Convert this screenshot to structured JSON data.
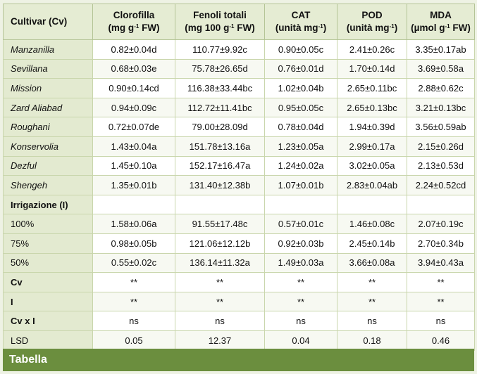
{
  "table": {
    "headers": {
      "cultivar": "Cultivar (Cv)",
      "clorofilla": {
        "line1": "Clorofilla",
        "line2a": "(mg g",
        "sup": "-1",
        "line2b": " FW)"
      },
      "fenoli": {
        "line1": "Fenoli totali",
        "line2a": "(mg 100 g",
        "sup": "-1",
        "line2b": " FW)"
      },
      "cat": {
        "line1": "CAT",
        "line2a": "(unità mg",
        "sup": "-1",
        "line2b": ")"
      },
      "pod": {
        "line1": "POD",
        "line2a": "(unità mg",
        "sup": "-1",
        "line2b": ")"
      },
      "mda": {
        "line1": "MDA",
        "line2a": "(µmol g",
        "sup": "-1",
        "line2b": " FW)"
      }
    },
    "rows": [
      {
        "label": "Manzanilla",
        "values": [
          "0.82±0.04d",
          "110.77±9.92c",
          "0.90±0.05c",
          "2.41±0.26c",
          "3.35±0.17ab"
        ]
      },
      {
        "label": "Sevillana",
        "values": [
          "0.68±0.03e",
          "75.78±26.65d",
          "0.76±0.01d",
          "1.70±0.14d",
          "3.69±0.58a"
        ]
      },
      {
        "label": "Mission",
        "values": [
          "0.90±0.14cd",
          "116.38±33.44bc",
          "1.02±0.04b",
          "2.65±0.11bc",
          "2.88±0.62c"
        ]
      },
      {
        "label": "Zard Aliabad",
        "values": [
          "0.94±0.09c",
          "112.72±11.41bc",
          "0.95±0.05c",
          "2.65±0.13bc",
          "3.21±0.13bc"
        ]
      },
      {
        "label": "Roughani",
        "values": [
          "0.72±0.07de",
          "79.00±28.09d",
          "0.78±0.04d",
          "1.94±0.39d",
          "3.56±0.59ab"
        ]
      },
      {
        "label": "Konservolia",
        "values": [
          "1.43±0.04a",
          "151.78±13.16a",
          "1.23±0.05a",
          "2.99±0.17a",
          "2.15±0.26d"
        ]
      },
      {
        "label": "Dezful",
        "values": [
          "1.45±0.10a",
          "152.17±16.47a",
          "1.24±0.02a",
          "3.02±0.05a",
          "2.13±0.53d"
        ]
      },
      {
        "label": "Shengeh",
        "values": [
          "1.35±0.01b",
          "131.40±12.38b",
          "1.07±0.01b",
          "2.83±0.04ab",
          "2.24±0.52cd"
        ]
      },
      {
        "label": "Irrigazione (I)",
        "values": [
          "",
          "",
          "",
          "",
          ""
        ]
      },
      {
        "label": "100%",
        "values": [
          "1.58±0.06a",
          "91.55±17.48c",
          "0.57±0.01c",
          "1.46±0.08c",
          "2.07±0.19c"
        ]
      },
      {
        "label": "75%",
        "values": [
          "0.98±0.05b",
          "121.06±12.12b",
          "0.92±0.03b",
          "2.45±0.14b",
          "2.70±0.34b"
        ]
      },
      {
        "label": "50%",
        "values": [
          "0.55±0.02c",
          "136.14±11.32a",
          "1.49±0.03a",
          "3.66±0.08a",
          "3.94±0.43a"
        ]
      },
      {
        "label": "Cv",
        "values": [
          "**",
          "**",
          "**",
          "**",
          "**"
        ]
      },
      {
        "label": "I",
        "values": [
          "**",
          "**",
          "**",
          "**",
          "**"
        ]
      },
      {
        "label": "Cv x I",
        "values": [
          "ns",
          "ns",
          "ns",
          "ns",
          "ns"
        ]
      },
      {
        "label": "LSD",
        "values": [
          "0.05",
          "12.37",
          "0.04",
          "0.18",
          "0.46"
        ]
      }
    ]
  },
  "footer": {
    "label": "Tabella"
  },
  "colors": {
    "header_bg": "#e5ecd3",
    "label_bg": "#e3ead0",
    "footer_bg": "#6b8e3e",
    "border": "#c9d6ac"
  }
}
